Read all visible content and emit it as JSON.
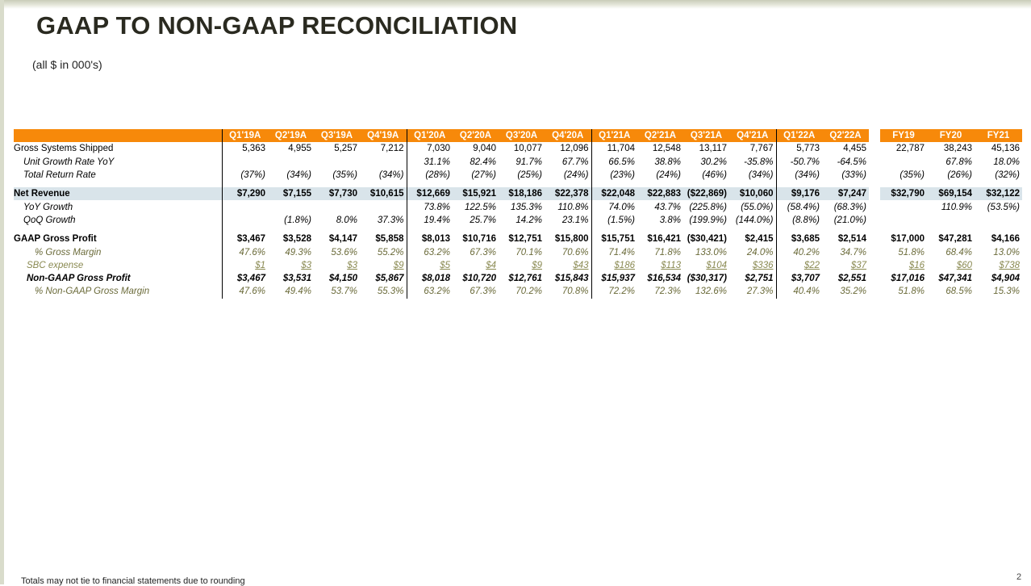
{
  "title": "GAAP TO NON-GAAP RECONCILIATION",
  "subtitle": "(all $ in 000's)",
  "footnote": "Totals may not tie to financial statements due to rounding",
  "page_number": "2",
  "colors": {
    "header_orange": "#f7890a",
    "revenue_band": "#d9e4ea",
    "olive_text": "#6b6b3a"
  },
  "columns": [
    "Q1'19A",
    "Q2'19A",
    "Q3'19A",
    "Q4'19A",
    "Q1'20A",
    "Q2'20A",
    "Q3'20A",
    "Q4'20A",
    "Q1'21A",
    "Q2'21A",
    "Q3'21A",
    "Q4'21A",
    "Q1'22A",
    "Q2'22A",
    "FY19",
    "FY20",
    "FY21"
  ],
  "rows": {
    "gross_systems": {
      "label": "Gross Systems Shipped",
      "values": [
        "5,363",
        "4,955",
        "5,257",
        "7,212",
        "7,030",
        "9,040",
        "10,077",
        "12,096",
        "11,704",
        "12,548",
        "13,117",
        "7,767",
        "5,773",
        "4,455",
        "22,787",
        "38,243",
        "45,136"
      ]
    },
    "unit_growth": {
      "label": "Unit Growth Rate YoY",
      "values": [
        "",
        "",
        "",
        "",
        "31.1%",
        "82.4%",
        "91.7%",
        "67.7%",
        "66.5%",
        "38.8%",
        "30.2%",
        "-35.8%",
        "-50.7%",
        "-64.5%",
        "",
        "67.8%",
        "18.0%"
      ]
    },
    "total_return": {
      "label": "Total Return Rate",
      "values": [
        "(37%)",
        "(34%)",
        "(35%)",
        "(34%)",
        "(28%)",
        "(27%)",
        "(25%)",
        "(24%)",
        "(23%)",
        "(24%)",
        "(46%)",
        "(34%)",
        "(34%)",
        "(33%)",
        "(35%)",
        "(26%)",
        "(32%)"
      ]
    },
    "net_revenue": {
      "label": "Net Revenue",
      "values": [
        "$7,290",
        "$7,155",
        "$7,730",
        "$10,615",
        "$12,669",
        "$15,921",
        "$18,186",
        "$22,378",
        "$22,048",
        "$22,883",
        "($22,869)",
        "$10,060",
        "$9,176",
        "$7,247",
        "$32,790",
        "$69,154",
        "$32,122"
      ]
    },
    "yoy_growth": {
      "label": "YoY Growth",
      "values": [
        "",
        "",
        "",
        "",
        "73.8%",
        "122.5%",
        "135.3%",
        "110.8%",
        "74.0%",
        "43.7%",
        "(225.8%)",
        "(55.0%)",
        "(58.4%)",
        "(68.3%)",
        "",
        "110.9%",
        "(53.5%)"
      ]
    },
    "qoq_growth": {
      "label": "QoQ Growth",
      "values": [
        "",
        "(1.8%)",
        "8.0%",
        "37.3%",
        "19.4%",
        "25.7%",
        "14.2%",
        "23.1%",
        "(1.5%)",
        "3.8%",
        "(199.9%)",
        "(144.0%)",
        "(8.8%)",
        "(21.0%)",
        "",
        "",
        ""
      ]
    },
    "gaap_gross_profit": {
      "label": "GAAP Gross Profit",
      "values": [
        "$3,467",
        "$3,528",
        "$4,147",
        "$5,858",
        "$8,013",
        "$10,716",
        "$12,751",
        "$15,800",
        "$15,751",
        "$16,421",
        "($30,421)",
        "$2,415",
        "$3,685",
        "$2,514",
        "$17,000",
        "$47,281",
        "$4,166"
      ]
    },
    "gross_margin": {
      "label": "% Gross Margin",
      "values": [
        "47.6%",
        "49.3%",
        "53.6%",
        "55.2%",
        "63.2%",
        "67.3%",
        "70.1%",
        "70.6%",
        "71.4%",
        "71.8%",
        "133.0%",
        "24.0%",
        "40.2%",
        "34.7%",
        "51.8%",
        "68.4%",
        "13.0%"
      ]
    },
    "sbc_expense": {
      "label": "SBC expense",
      "values": [
        "$1",
        "$3",
        "$3",
        "$9",
        "$5",
        "$4",
        "$9",
        "$43",
        "$186",
        "$113",
        "$104",
        "$336",
        "$22",
        "$37",
        "$16",
        "$60",
        "$738"
      ]
    },
    "non_gaap_gross_profit": {
      "label": "Non-GAAP Gross Profit",
      "values": [
        "$3,467",
        "$3,531",
        "$4,150",
        "$5,867",
        "$8,018",
        "$10,720",
        "$12,761",
        "$15,843",
        "$15,937",
        "$16,534",
        "($30,317)",
        "$2,751",
        "$3,707",
        "$2,551",
        "$17,016",
        "$47,341",
        "$4,904"
      ]
    },
    "non_gaap_margin": {
      "label": "% Non-GAAP Gross Margin",
      "values": [
        "47.6%",
        "49.4%",
        "53.7%",
        "55.3%",
        "63.2%",
        "67.3%",
        "70.2%",
        "70.8%",
        "72.2%",
        "72.3%",
        "132.6%",
        "27.3%",
        "40.4%",
        "35.2%",
        "51.8%",
        "68.5%",
        "15.3%"
      ]
    }
  }
}
